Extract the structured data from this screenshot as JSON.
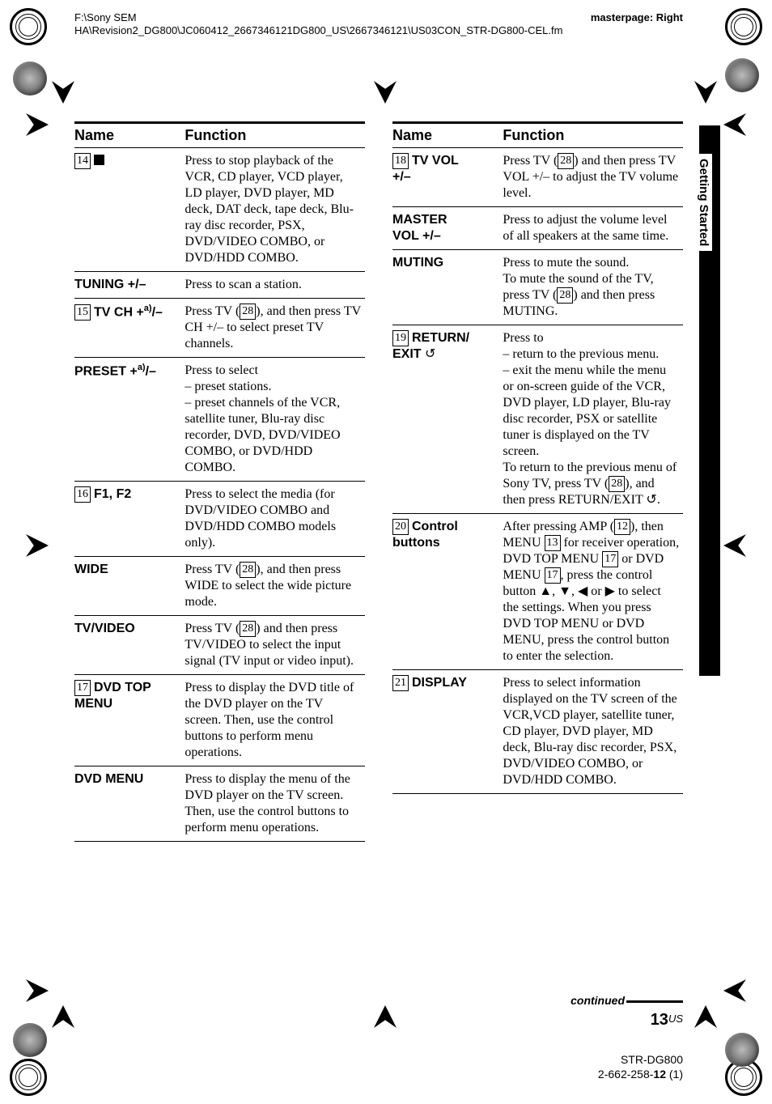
{
  "header_path": "F:\\Sony SEM\nHA\\Revision2_DG800\\JC060412_2667346121DG800_US\\2667346121\\US03CON_STR-DG800-CEL.fm",
  "header_right": "masterpage: Right",
  "side_label": "Getting Started",
  "thead": {
    "name": "Name",
    "func": "Function"
  },
  "left": [
    {
      "num": "14",
      "name_html": "<span class=\"stop-sq\"></span>",
      "func": "Press to stop playback of the VCR, CD player, VCD player, LD player, DVD player, MD deck, DAT deck, tape deck, Blu-ray disc recorder, PSX, DVD/VIDEO COMBO, or DVD/HDD COMBO."
    },
    {
      "num": "",
      "name_html": "TUNING +/–",
      "func": "Press to scan a station."
    },
    {
      "num": "15",
      "name_html": "TV CH +<sup class=\"fn\">a)</sup>/–",
      "func": "Press TV (<span class=\"boxnum\">28</span>), and then press TV CH +/– to select preset TV channels."
    },
    {
      "num": "",
      "name_html": "PRESET +<sup class=\"fn\">a)</sup>/–",
      "func": "Press to select<br>– preset stations.<br>– preset channels of the VCR, satellite tuner, Blu-ray disc recorder, DVD, DVD/VIDEO COMBO, or DVD/HDD COMBO."
    },
    {
      "num": "16",
      "name_html": "F1, F2",
      "func": "Press to select the media (for DVD/VIDEO COMBO and DVD/HDD COMBO models only)."
    },
    {
      "num": "",
      "name_html": "WIDE",
      "func": "Press TV (<span class=\"boxnum\">28</span>), and then press WIDE to select the wide picture mode."
    },
    {
      "num": "",
      "name_html": "TV/VIDEO",
      "func": "Press TV (<span class=\"boxnum\">28</span>) and then press TV/VIDEO to select the input signal (TV input or video input)."
    },
    {
      "num": "17",
      "name_html": "DVD TOP<br>MENU",
      "func": "Press to display the DVD title of the DVD player on the TV screen. Then, use the control buttons to perform menu operations."
    },
    {
      "num": "",
      "name_html": "DVD MENU",
      "func": "Press to display the menu of the DVD player on the TV screen. Then, use the control buttons to perform menu operations."
    }
  ],
  "right": [
    {
      "num": "18",
      "name_html": "TV VOL<br>+/–",
      "func": "Press TV (<span class=\"boxnum\">28</span>) and then press TV VOL +/– to adjust the TV volume level."
    },
    {
      "num": "",
      "name_html": "MASTER<br>VOL +/–",
      "func": "Press to adjust the volume level of all speakers at the same time."
    },
    {
      "num": "",
      "name_html": "MUTING",
      "func": "Press to mute the sound.<br>To mute the sound of the TV, press TV (<span class=\"boxnum\">28</span>) and then press MUTING."
    },
    {
      "num": "19",
      "name_html": "RETURN/<br>EXIT <span class=\"return-icon\">&#8634;</span>",
      "func": "Press to<br>– return to the previous menu.<br>– exit the menu while the menu or on-screen guide of the VCR, DVD player, LD player, Blu-ray disc recorder, PSX or satellite tuner is displayed on the TV screen.<br>To return to the previous menu of Sony TV, press TV (<span class=\"boxnum\">28</span>), and then press RETURN/EXIT <span class=\"return-icon\">&#8634;</span>."
    },
    {
      "num": "20",
      "name_html": "Control<br>buttons",
      "func": "After pressing AMP (<span class=\"boxnum\">12</span>), then MENU <span class=\"boxnum\">13</span> for receiver operation, DVD TOP MENU <span class=\"boxnum\">17</span> or DVD MENU <span class=\"boxnum\">17</span>, press the control button &#9650;, &#9660;, &#9664; or &#9654; to select the settings. When you press DVD TOP MENU or DVD MENU, press the control button to enter the selection."
    },
    {
      "num": "21",
      "name_html": "DISPLAY",
      "func": "Press to select information displayed on the TV screen of the VCR,VCD player, satellite tuner, CD player, DVD player, MD deck, Blu-ray disc recorder, PSX, DVD/VIDEO COMBO, or DVD/HDD COMBO."
    }
  ],
  "footer_continued": "continued",
  "footer_page_big": "13",
  "footer_page_us": "US",
  "footer_model_line1": "STR-DG800",
  "footer_model_line2": "2-662-258-12 (1)"
}
